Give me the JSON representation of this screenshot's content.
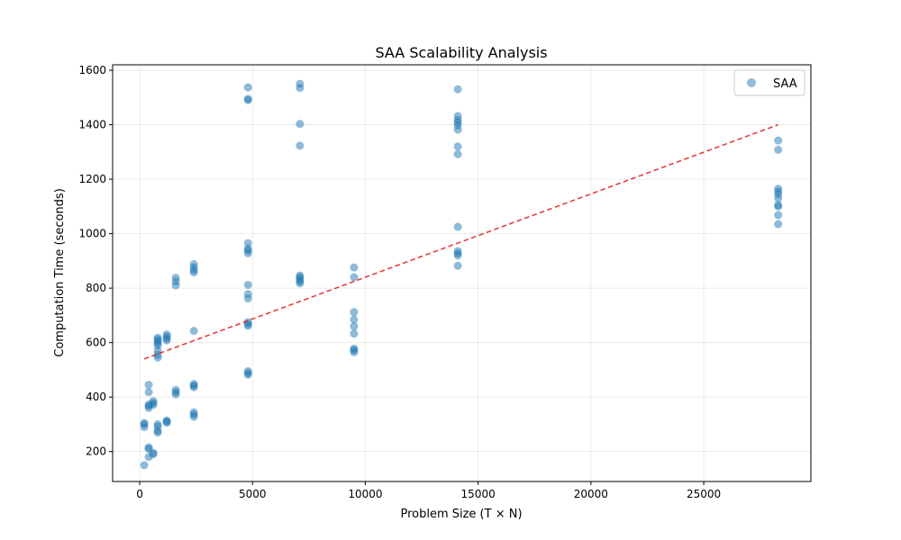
{
  "chart_data": {
    "type": "scatter",
    "title": "SAA Scalability Analysis",
    "xlabel": "Problem Size (T × N)",
    "ylabel": "Computation Time (seconds)",
    "xlim": [
      -1200,
      29750
    ],
    "ylim": [
      90,
      1620
    ],
    "xticks": [
      0,
      5000,
      10000,
      15000,
      20000,
      25000
    ],
    "yticks": [
      200,
      400,
      600,
      800,
      1000,
      1200,
      1400,
      1600
    ],
    "grid": true,
    "legend": {
      "position": "top-right",
      "entries": [
        "SAA"
      ]
    },
    "colors": {
      "points": "#1f77b4",
      "trend": "#e31a1c"
    },
    "series": [
      {
        "name": "SAA",
        "points": [
          [
            200,
            150
          ],
          [
            200,
            290
          ],
          [
            200,
            300
          ],
          [
            200,
            305
          ],
          [
            400,
            180
          ],
          [
            400,
            210
          ],
          [
            400,
            215
          ],
          [
            400,
            360
          ],
          [
            400,
            368
          ],
          [
            400,
            372
          ],
          [
            400,
            418
          ],
          [
            400,
            445
          ],
          [
            600,
            190
          ],
          [
            600,
            195
          ],
          [
            600,
            372
          ],
          [
            600,
            378
          ],
          [
            600,
            385
          ],
          [
            800,
            270
          ],
          [
            800,
            276
          ],
          [
            800,
            292
          ],
          [
            800,
            300
          ],
          [
            800,
            545
          ],
          [
            800,
            555
          ],
          [
            800,
            570
          ],
          [
            800,
            590
          ],
          [
            800,
            598
          ],
          [
            800,
            605
          ],
          [
            800,
            612
          ],
          [
            800,
            618
          ],
          [
            1200,
            306
          ],
          [
            1200,
            310
          ],
          [
            1200,
            314
          ],
          [
            1200,
            608
          ],
          [
            1200,
            615
          ],
          [
            1200,
            622
          ],
          [
            1200,
            630
          ],
          [
            1600,
            410
          ],
          [
            1600,
            418
          ],
          [
            1600,
            426
          ],
          [
            1600,
            810
          ],
          [
            1600,
            825
          ],
          [
            1600,
            838
          ],
          [
            2400,
            328
          ],
          [
            2400,
            336
          ],
          [
            2400,
            344
          ],
          [
            2400,
            436
          ],
          [
            2400,
            442
          ],
          [
            2400,
            448
          ],
          [
            2400,
            643
          ],
          [
            2400,
            858
          ],
          [
            2400,
            866
          ],
          [
            2400,
            876
          ],
          [
            2400,
            888
          ],
          [
            4800,
            482
          ],
          [
            4800,
            488
          ],
          [
            4800,
            495
          ],
          [
            4800,
            662
          ],
          [
            4800,
            668
          ],
          [
            4800,
            675
          ],
          [
            4800,
            762
          ],
          [
            4800,
            778
          ],
          [
            4800,
            812
          ],
          [
            4800,
            928
          ],
          [
            4800,
            938
          ],
          [
            4800,
            945
          ],
          [
            4800,
            965
          ],
          [
            4800,
            1490
          ],
          [
            4800,
            1495
          ],
          [
            4800,
            1537
          ],
          [
            7100,
            818
          ],
          [
            7100,
            825
          ],
          [
            7100,
            832
          ],
          [
            7100,
            840
          ],
          [
            7100,
            846
          ],
          [
            7100,
            1323
          ],
          [
            7100,
            1403
          ],
          [
            7100,
            1535
          ],
          [
            7100,
            1550
          ],
          [
            9500,
            565
          ],
          [
            9500,
            572
          ],
          [
            9500,
            578
          ],
          [
            9500,
            633
          ],
          [
            9500,
            660
          ],
          [
            9500,
            685
          ],
          [
            9500,
            712
          ],
          [
            9500,
            840
          ],
          [
            9500,
            876
          ],
          [
            14100,
            882
          ],
          [
            14100,
            920
          ],
          [
            14100,
            928
          ],
          [
            14100,
            936
          ],
          [
            14100,
            1025
          ],
          [
            14100,
            1292
          ],
          [
            14100,
            1320
          ],
          [
            14100,
            1382
          ],
          [
            14100,
            1398
          ],
          [
            14100,
            1408
          ],
          [
            14100,
            1418
          ],
          [
            14100,
            1432
          ],
          [
            14100,
            1530
          ],
          [
            28300,
            1035
          ],
          [
            28300,
            1068
          ],
          [
            28300,
            1100
          ],
          [
            28300,
            1105
          ],
          [
            28300,
            1130
          ],
          [
            28300,
            1145
          ],
          [
            28300,
            1155
          ],
          [
            28300,
            1165
          ],
          [
            28300,
            1308
          ],
          [
            28300,
            1342
          ]
        ]
      }
    ],
    "trendline": {
      "x": [
        200,
        28300
      ],
      "y": [
        540,
        1400
      ]
    }
  }
}
